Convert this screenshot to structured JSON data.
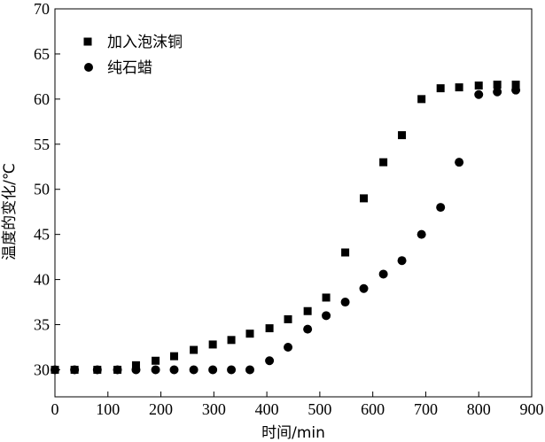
{
  "chart_data": {
    "type": "scatter",
    "xlabel": "时间/min",
    "ylabel": "温度的变化/℃",
    "xlim": [
      0,
      900
    ],
    "ylim": [
      27,
      70
    ],
    "xticks": [
      0,
      100,
      200,
      300,
      400,
      500,
      600,
      700,
      800,
      900
    ],
    "yticks": [
      30,
      35,
      40,
      45,
      50,
      55,
      60,
      65,
      70
    ],
    "grid": false,
    "legend_position": "top-left",
    "series": [
      {
        "name": "加入泡沫铜",
        "marker": "square",
        "color": "#000000",
        "points": [
          {
            "x": 0,
            "y": 30
          },
          {
            "x": 37,
            "y": 30
          },
          {
            "x": 80,
            "y": 30
          },
          {
            "x": 118,
            "y": 30
          },
          {
            "x": 153,
            "y": 30.5
          },
          {
            "x": 190,
            "y": 31
          },
          {
            "x": 225,
            "y": 31.5
          },
          {
            "x": 262,
            "y": 32.2
          },
          {
            "x": 298,
            "y": 32.8
          },
          {
            "x": 333,
            "y": 33.3
          },
          {
            "x": 368,
            "y": 34
          },
          {
            "x": 405,
            "y": 34.6
          },
          {
            "x": 440,
            "y": 35.6
          },
          {
            "x": 477,
            "y": 36.5
          },
          {
            "x": 512,
            "y": 38
          },
          {
            "x": 548,
            "y": 43
          },
          {
            "x": 583,
            "y": 49
          },
          {
            "x": 620,
            "y": 53
          },
          {
            "x": 655,
            "y": 56
          },
          {
            "x": 692,
            "y": 60
          },
          {
            "x": 728,
            "y": 61.2
          },
          {
            "x": 763,
            "y": 61.3
          },
          {
            "x": 800,
            "y": 61.5
          },
          {
            "x": 835,
            "y": 61.6
          },
          {
            "x": 870,
            "y": 61.6
          }
        ]
      },
      {
        "name": "纯石蜡",
        "marker": "circle",
        "color": "#000000",
        "points": [
          {
            "x": 0,
            "y": 30
          },
          {
            "x": 37,
            "y": 30
          },
          {
            "x": 80,
            "y": 30
          },
          {
            "x": 118,
            "y": 30
          },
          {
            "x": 153,
            "y": 30
          },
          {
            "x": 190,
            "y": 30
          },
          {
            "x": 225,
            "y": 30
          },
          {
            "x": 262,
            "y": 30
          },
          {
            "x": 298,
            "y": 30
          },
          {
            "x": 333,
            "y": 30
          },
          {
            "x": 368,
            "y": 30
          },
          {
            "x": 405,
            "y": 31
          },
          {
            "x": 440,
            "y": 32.5
          },
          {
            "x": 477,
            "y": 34.5
          },
          {
            "x": 512,
            "y": 36
          },
          {
            "x": 548,
            "y": 37.5
          },
          {
            "x": 583,
            "y": 39
          },
          {
            "x": 620,
            "y": 40.6
          },
          {
            "x": 655,
            "y": 42.1
          },
          {
            "x": 692,
            "y": 45
          },
          {
            "x": 728,
            "y": 48
          },
          {
            "x": 763,
            "y": 53
          },
          {
            "x": 800,
            "y": 60.5
          },
          {
            "x": 835,
            "y": 60.8
          },
          {
            "x": 870,
            "y": 61
          }
        ]
      }
    ]
  }
}
